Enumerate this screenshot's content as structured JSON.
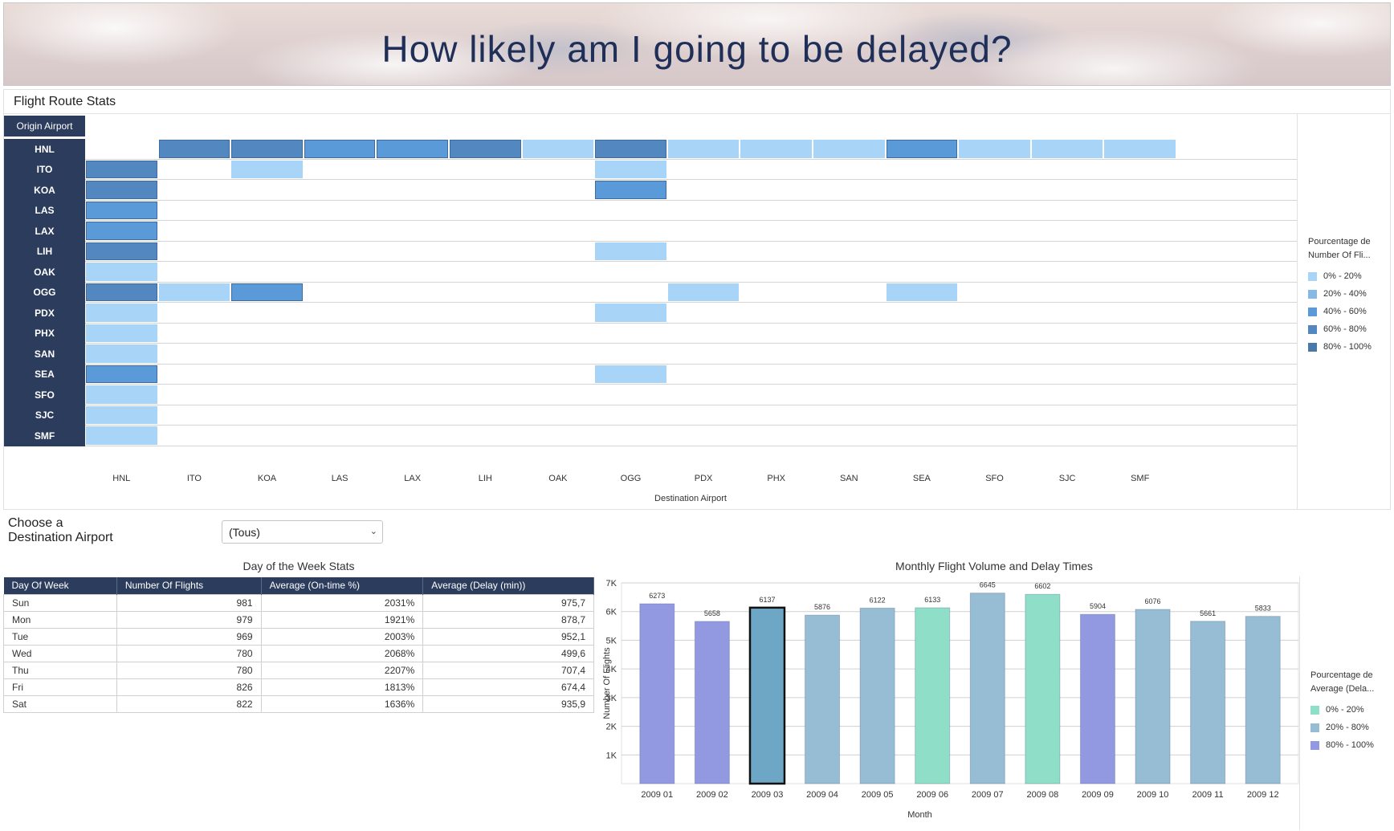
{
  "banner": {
    "title": "How likely am I going to be delayed?"
  },
  "route_stats": {
    "title": "Flight Route Stats",
    "origin_header": "Origin Airport",
    "x_title": "Destination Airport",
    "origins": [
      "HNL",
      "ITO",
      "KOA",
      "LAS",
      "LAX",
      "LIH",
      "OAK",
      "OGG",
      "PDX",
      "PHX",
      "SAN",
      "SEA",
      "SFO",
      "SJC",
      "SMF"
    ],
    "destinations": [
      "HNL",
      "ITO",
      "KOA",
      "LAS",
      "LAX",
      "LIH",
      "OAK",
      "OGG",
      "PDX",
      "PHX",
      "SAN",
      "SEA",
      "SFO",
      "SJC",
      "SMF"
    ],
    "cells": [
      [
        "HNL",
        "ITO",
        "60-80"
      ],
      [
        "HNL",
        "KOA",
        "60-80"
      ],
      [
        "HNL",
        "LAS",
        "40-60"
      ],
      [
        "HNL",
        "LAX",
        "40-60"
      ],
      [
        "HNL",
        "LIH",
        "60-80"
      ],
      [
        "HNL",
        "OAK",
        "0-20"
      ],
      [
        "HNL",
        "OGG",
        "60-80"
      ],
      [
        "HNL",
        "PDX",
        "0-20"
      ],
      [
        "HNL",
        "PHX",
        "0-20"
      ],
      [
        "HNL",
        "SAN",
        "0-20"
      ],
      [
        "HNL",
        "SEA",
        "40-60"
      ],
      [
        "HNL",
        "SFO",
        "0-20"
      ],
      [
        "HNL",
        "SJC",
        "0-20"
      ],
      [
        "HNL",
        "SMF",
        "0-20"
      ],
      [
        "ITO",
        "HNL",
        "60-80"
      ],
      [
        "ITO",
        "KOA",
        "0-20"
      ],
      [
        "ITO",
        "OGG",
        "0-20"
      ],
      [
        "KOA",
        "HNL",
        "60-80"
      ],
      [
        "KOA",
        "OGG",
        "40-60"
      ],
      [
        "LAS",
        "HNL",
        "40-60"
      ],
      [
        "LAX",
        "HNL",
        "40-60"
      ],
      [
        "LIH",
        "HNL",
        "60-80"
      ],
      [
        "LIH",
        "OGG",
        "0-20"
      ],
      [
        "OAK",
        "HNL",
        "0-20"
      ],
      [
        "OGG",
        "HNL",
        "60-80"
      ],
      [
        "OGG",
        "ITO",
        "0-20"
      ],
      [
        "OGG",
        "KOA",
        "40-60"
      ],
      [
        "OGG",
        "PDX",
        "0-20"
      ],
      [
        "OGG",
        "SEA",
        "0-20"
      ],
      [
        "PDX",
        "HNL",
        "0-20"
      ],
      [
        "PDX",
        "OGG",
        "0-20"
      ],
      [
        "PHX",
        "HNL",
        "0-20"
      ],
      [
        "SAN",
        "HNL",
        "0-20"
      ],
      [
        "SEA",
        "HNL",
        "40-60"
      ],
      [
        "SEA",
        "OGG",
        "0-20"
      ],
      [
        "SFO",
        "HNL",
        "0-20"
      ],
      [
        "SJC",
        "HNL",
        "0-20"
      ],
      [
        "SMF",
        "HNL",
        "0-20"
      ]
    ],
    "legend": {
      "title": [
        "Pourcentage de",
        "Number Of Fli..."
      ],
      "items": [
        {
          "key": "0-20",
          "label": "0% - 20%",
          "color": "#a8d5f7"
        },
        {
          "key": "20-40",
          "label": "20% - 40%",
          "color": "#86b9e8"
        },
        {
          "key": "40-60",
          "label": "40% - 60%",
          "color": "#5b9ad8"
        },
        {
          "key": "60-80",
          "label": "60% - 80%",
          "color": "#5288bf"
        },
        {
          "key": "80-100",
          "label": "80% - 100%",
          "color": "#4a78a8"
        }
      ]
    }
  },
  "filter": {
    "label_line1": "Choose a",
    "label_line2": "Destination Airport",
    "value": "(Tous)"
  },
  "day_table": {
    "title": "Day of the Week Stats",
    "headers": [
      "Day Of Week",
      "Number Of Flights",
      "Average (On-time %)",
      "Average (Delay (min))"
    ],
    "rows": [
      [
        "Sun",
        "981",
        "2031%",
        "975,7"
      ],
      [
        "Mon",
        "979",
        "1921%",
        "878,7"
      ],
      [
        "Tue",
        "969",
        "2003%",
        "952,1"
      ],
      [
        "Wed",
        "780",
        "2068%",
        "499,6"
      ],
      [
        "Thu",
        "780",
        "2207%",
        "707,4"
      ],
      [
        "Fri",
        "826",
        "1813%",
        "674,4"
      ],
      [
        "Sat",
        "822",
        "1636%",
        "935,9"
      ]
    ]
  },
  "chart_data": {
    "type": "bar",
    "title": "Monthly Flight Volume and Delay Times",
    "xlabel": "Month",
    "ylabel": "Number Of Flights",
    "ylim": [
      0,
      7000
    ],
    "yticks": [
      "1K",
      "2K",
      "3K",
      "4K",
      "5K",
      "6K",
      "7K"
    ],
    "categories": [
      "2009 01",
      "2009 02",
      "2009 03",
      "2009 04",
      "2009 05",
      "2009 06",
      "2009 07",
      "2009 08",
      "2009 09",
      "2009 10",
      "2009 11",
      "2009 12"
    ],
    "values": [
      6273,
      5658,
      6137,
      5876,
      6122,
      6133,
      6645,
      6602,
      5904,
      6076,
      5661,
      5833
    ],
    "delay_bucket": [
      "80-100",
      "80-100",
      "20-80",
      "20-80",
      "20-80",
      "0-20",
      "20-80",
      "0-20",
      "80-100",
      "20-80",
      "20-80",
      "20-80"
    ],
    "selected_index": 2,
    "grid": true,
    "legend": {
      "title": [
        "Pourcentage de",
        "Average (Dela..."
      ],
      "items": [
        {
          "key": "0-20",
          "label": "0% - 20%",
          "color": "#8fdfc8"
        },
        {
          "key": "20-80",
          "label": "20% - 80%",
          "color": "#96bdd3"
        },
        {
          "key": "80-100",
          "label": "80% - 100%",
          "color": "#9299e0"
        }
      ]
    },
    "selected_color": "#6ea6c5"
  }
}
